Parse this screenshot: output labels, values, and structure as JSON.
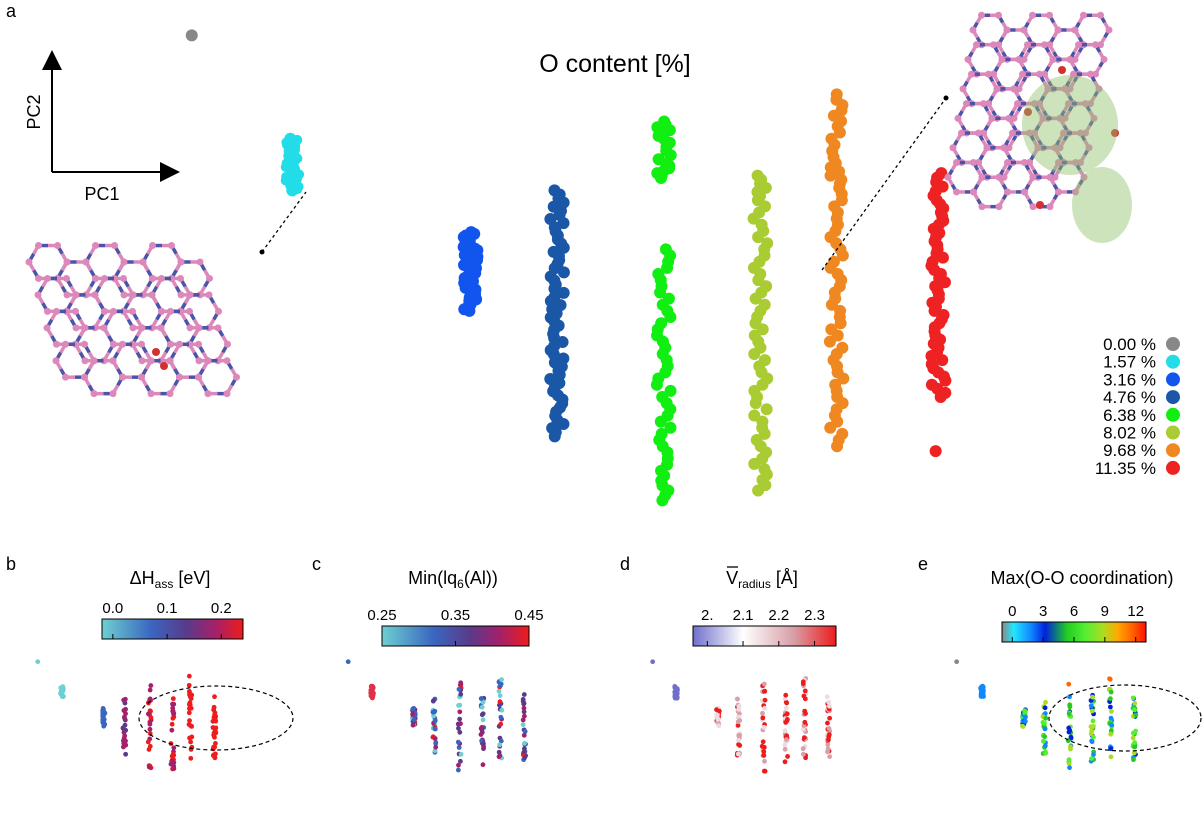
{
  "chart_data": [
    {
      "panel": "a",
      "type": "scatter",
      "title": "O content [%]",
      "xlabel": "PC1",
      "ylabel": "PC2",
      "legend_position": "right",
      "series": [
        {
          "name": "0.00 %",
          "color": "#888888",
          "points": [
            [
              -1.0,
              0.97
            ]
          ]
        },
        {
          "name": "1.57 %",
          "color": "#22dde8",
          "points": [
            [
              -0.8,
              0.55
            ],
            [
              -0.8,
              0.52
            ],
            [
              -0.8,
              0.49
            ],
            [
              -0.8,
              0.46
            ],
            [
              -0.8,
              0.43
            ],
            [
              -0.8,
              0.4
            ],
            [
              -0.8,
              0.37
            ],
            [
              -0.8,
              0.34
            ]
          ]
        },
        {
          "name": "3.16 %",
          "color": "#1155ee",
          "points": [
            [
              -0.45,
              0.17
            ],
            [
              -0.45,
              0.13
            ],
            [
              -0.45,
              0.09
            ],
            [
              -0.45,
              0.05
            ],
            [
              -0.45,
              0.01
            ],
            [
              -0.45,
              -0.03
            ],
            [
              -0.45,
              -0.07
            ],
            [
              -0.45,
              -0.11
            ],
            [
              -0.45,
              -0.15
            ]
          ]
        },
        {
          "name": "4.76 %",
          "color": "#1a57a6",
          "points": [
            [
              -0.28,
              0.34
            ],
            [
              -0.28,
              0.24
            ],
            [
              -0.28,
              0.14
            ],
            [
              -0.28,
              0.04
            ],
            [
              -0.28,
              -0.06
            ],
            [
              -0.28,
              -0.16
            ],
            [
              -0.28,
              -0.26
            ],
            [
              -0.28,
              -0.36
            ],
            [
              -0.28,
              -0.46
            ],
            [
              -0.28,
              -0.56
            ],
            [
              -0.28,
              -0.66
            ]
          ]
        },
        {
          "name": "6.38 %",
          "color": "#11ee11",
          "points": [
            [
              -0.07,
              0.62
            ],
            [
              -0.07,
              0.55
            ],
            [
              -0.07,
              0.45
            ],
            [
              -0.07,
              0.39
            ],
            [
              -0.07,
              0.1
            ],
            [
              -0.07,
              -0.05
            ],
            [
              -0.07,
              -0.2
            ],
            [
              -0.07,
              -0.35
            ],
            [
              -0.07,
              -0.5
            ],
            [
              -0.07,
              -0.65
            ],
            [
              -0.07,
              -0.8
            ],
            [
              -0.07,
              -0.92
            ]
          ]
        },
        {
          "name": "8.02 %",
          "color": "#aacc33",
          "points": [
            [
              0.12,
              0.4
            ],
            [
              0.12,
              0.3
            ],
            [
              0.12,
              0.15
            ],
            [
              0.12,
              0.0
            ],
            [
              0.12,
              -0.15
            ],
            [
              0.12,
              -0.3
            ],
            [
              0.12,
              -0.45
            ],
            [
              0.12,
              -0.6
            ],
            [
              0.12,
              -0.75
            ],
            [
              0.12,
              -0.88
            ]
          ]
        },
        {
          "name": "9.68 %",
          "color": "#f08822",
          "points": [
            [
              0.27,
              0.73
            ],
            [
              0.27,
              0.6
            ],
            [
              0.27,
              0.45
            ],
            [
              0.27,
              0.35
            ],
            [
              0.27,
              0.2
            ],
            [
              0.27,
              0.05
            ],
            [
              0.27,
              -0.1
            ],
            [
              0.27,
              -0.25
            ],
            [
              0.27,
              -0.4
            ],
            [
              0.27,
              -0.55
            ],
            [
              0.27,
              -0.7
            ]
          ]
        },
        {
          "name": "11.35 %",
          "color": "#ee2222",
          "points": [
            [
              0.47,
              0.41
            ],
            [
              0.47,
              0.3
            ],
            [
              0.47,
              0.2
            ],
            [
              0.47,
              0.1
            ],
            [
              0.47,
              0.0
            ],
            [
              0.47,
              -0.1
            ],
            [
              0.47,
              -0.2
            ],
            [
              0.47,
              -0.3
            ],
            [
              0.47,
              -0.4
            ],
            [
              0.47,
              -0.5
            ],
            [
              0.47,
              -0.72
            ]
          ]
        }
      ]
    },
    {
      "panel": "b",
      "type": "scatter",
      "colorbar": {
        "label": "ΔH",
        "label_sub": "ass",
        "unit": " [eV]",
        "ticks": [
          "0.0",
          "0.1",
          "0.2"
        ],
        "tick_values": [
          0.0,
          0.1,
          0.2
        ],
        "range": [
          -0.02,
          0.24
        ],
        "colors": [
          "#6ed0d0",
          "#3a66c0",
          "#5a3a8a",
          "#a4206a",
          "#ee1c1c"
        ]
      },
      "annotation": "dashed ellipse around high-PC2 points"
    },
    {
      "panel": "c",
      "type": "scatter",
      "colorbar": {
        "label": "Min(lq",
        "label_sub": "6",
        "unit": "(Al))",
        "ticks": [
          "0.25",
          "0.35",
          "0.45"
        ],
        "tick_values": [
          0.25,
          0.35,
          0.45
        ],
        "range": [
          0.25,
          0.45
        ],
        "colors": [
          "#6ed0d0",
          "#3a66c0",
          "#5a3a8a",
          "#a4206a",
          "#ee1c1c"
        ]
      }
    },
    {
      "panel": "d",
      "type": "scatter",
      "colorbar": {
        "label": "V",
        "label_sub": "radius",
        "unit": " [Å]",
        "ticks": [
          "2.",
          "2.1",
          "2.2",
          "2.3"
        ],
        "tick_values": [
          2.0,
          2.1,
          2.2,
          2.3
        ],
        "range": [
          1.96,
          2.36
        ],
        "colors": [
          "#7070cc",
          "#ffffff",
          "#d8a0a8",
          "#ee1c1c"
        ]
      }
    },
    {
      "panel": "e",
      "type": "scatter",
      "colorbar": {
        "label": "Max(O-O coordination)",
        "label_sub": "",
        "unit": "",
        "ticks": [
          "0",
          "3",
          "6",
          "9",
          "12"
        ],
        "tick_values": [
          0,
          3,
          6,
          9,
          12
        ],
        "range": [
          -1,
          13
        ],
        "colors": [
          "#888888",
          "#22e8ff",
          "#1188ff",
          "#0022dd",
          "#22cc22",
          "#55ee33",
          "#aadd22",
          "#ffaa00",
          "#ff6600",
          "#ff1100"
        ]
      },
      "annotation": "dashed ellipse around high-PC2 points"
    }
  ],
  "panel_labels": [
    "a",
    "b",
    "c",
    "d",
    "e"
  ]
}
